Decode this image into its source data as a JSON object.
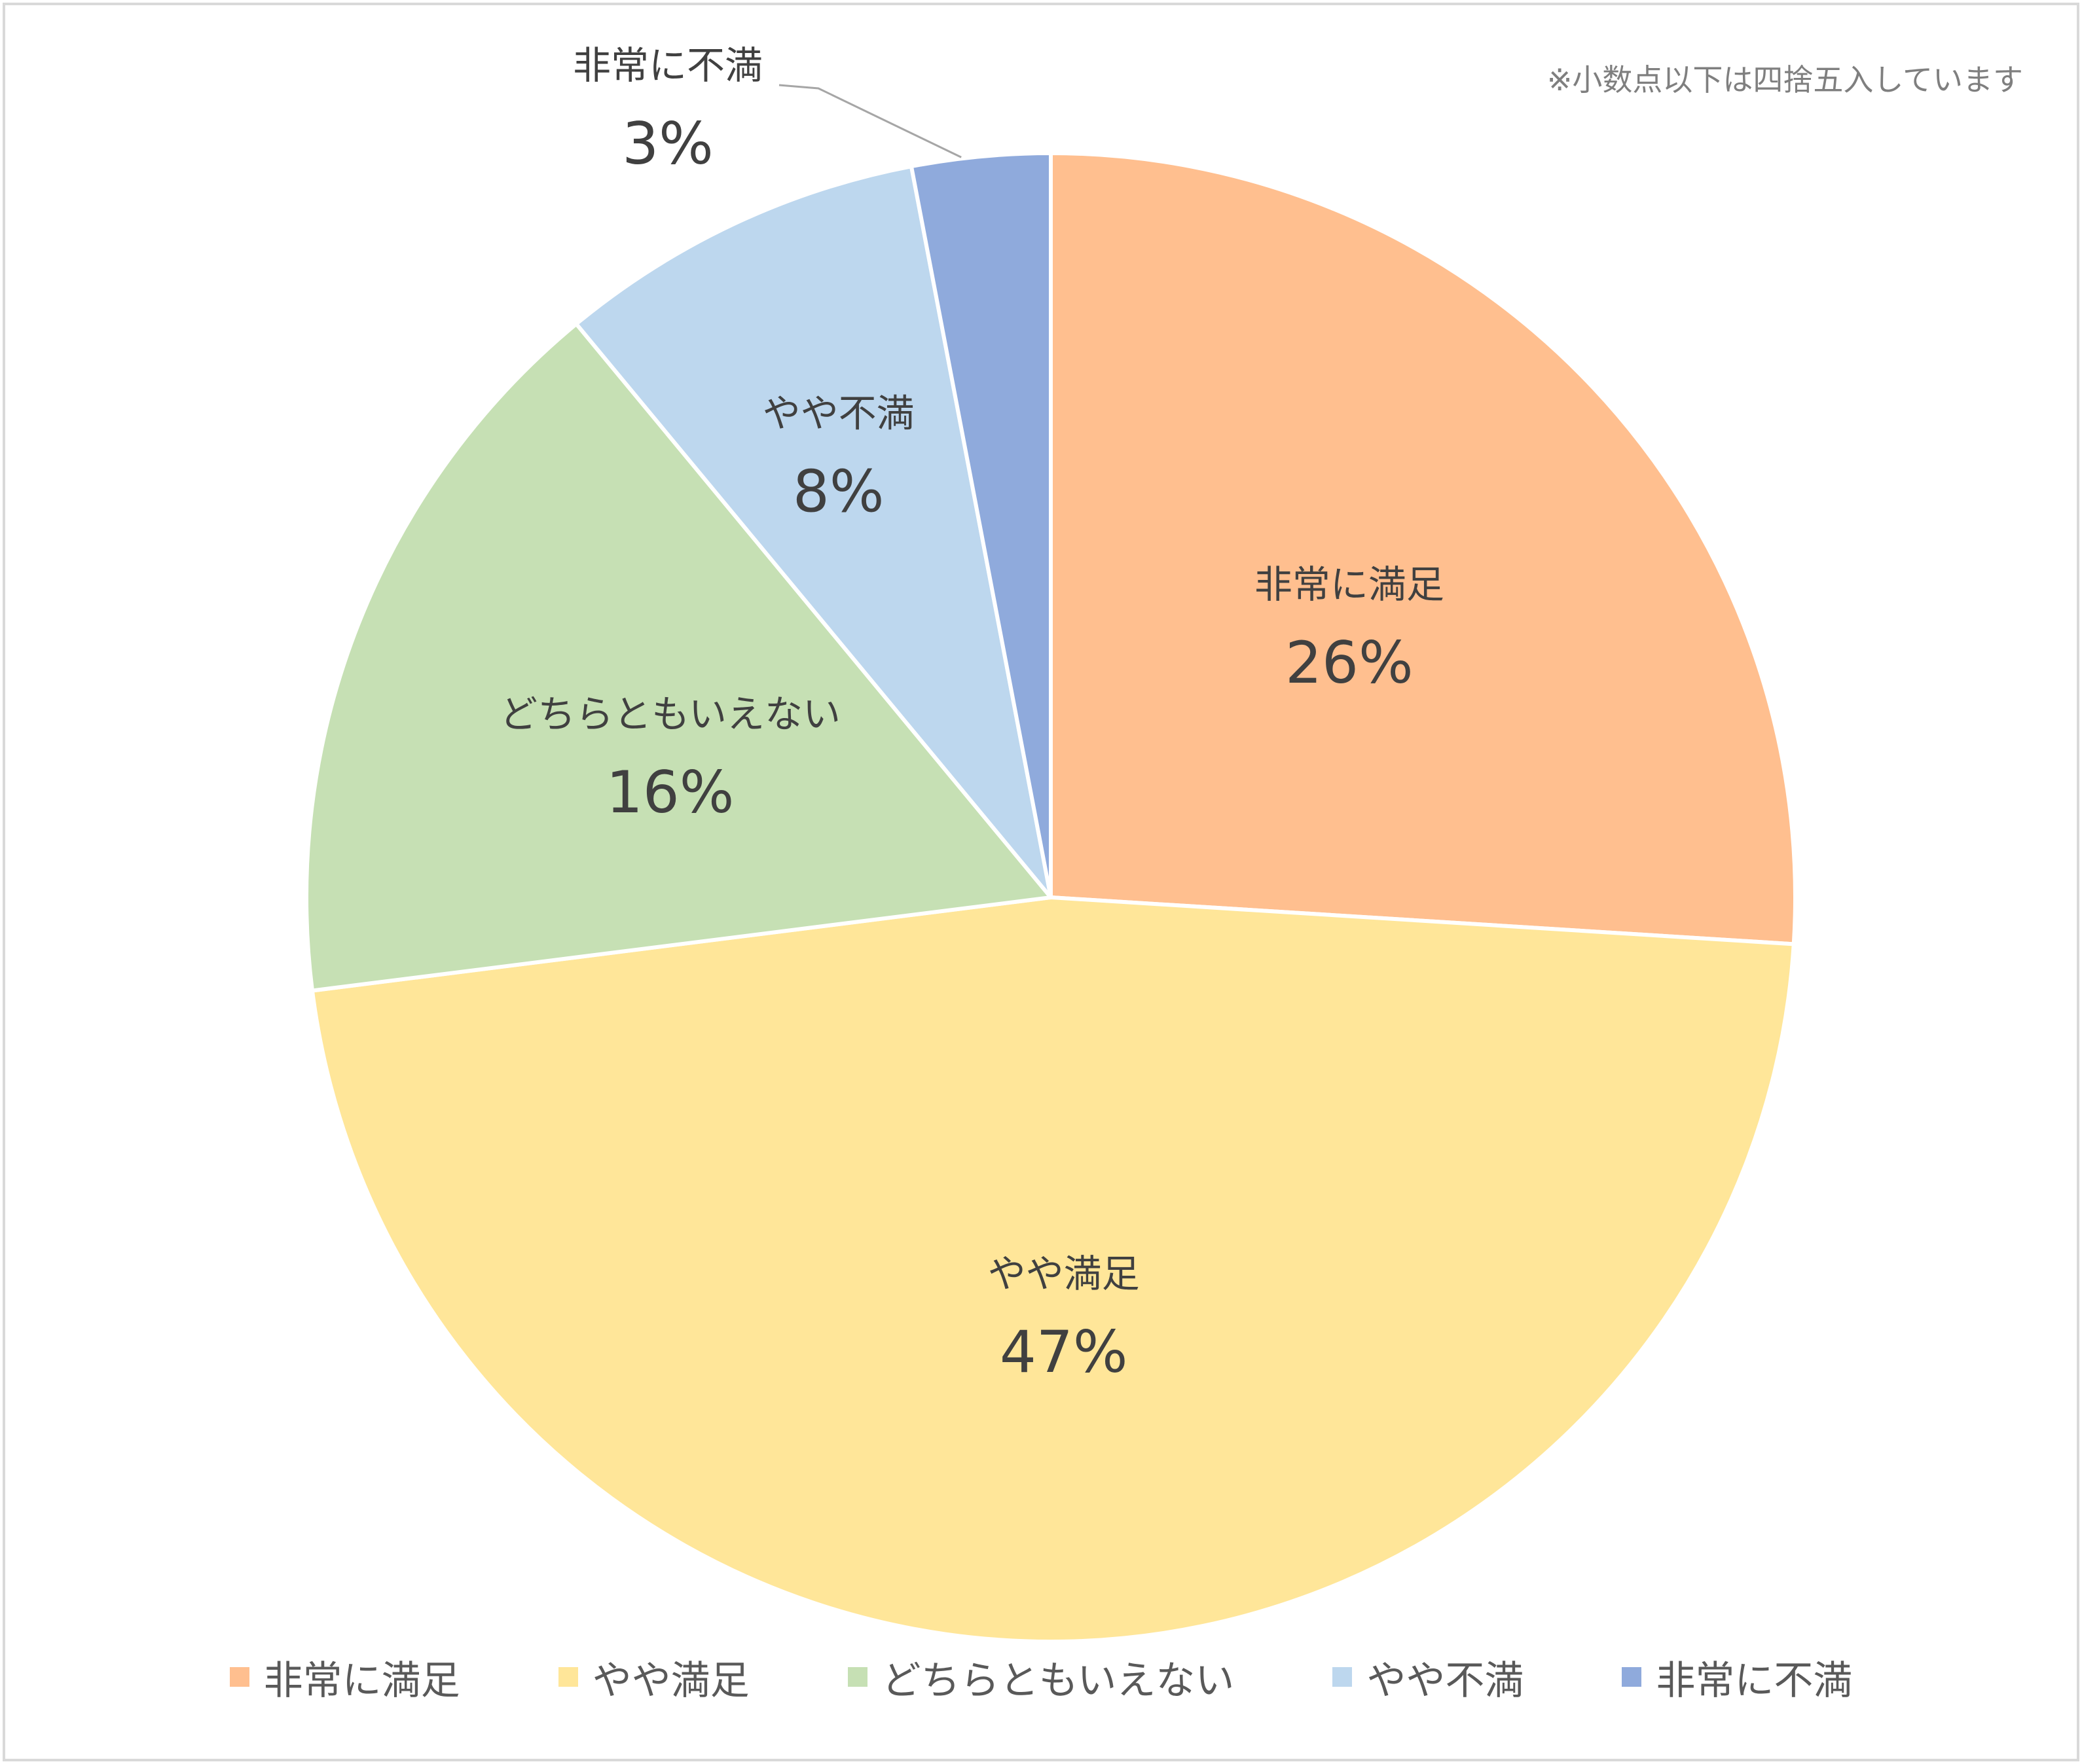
{
  "note": "※小数点以下は四捨五入しています",
  "chart_data": {
    "type": "pie",
    "start_angle_deg": 0,
    "direction": "clockwise",
    "legend_position": "bottom",
    "slices": [
      {
        "label": "非常に満足",
        "value": 26,
        "display": "26%",
        "color": "#FFBF8F",
        "label_position": "inside"
      },
      {
        "label": "やや満足",
        "value": 47,
        "display": "47%",
        "color": "#FFE699",
        "label_position": "inside"
      },
      {
        "label": "どちらともいえない",
        "value": 16,
        "display": "16%",
        "color": "#C6E0B4",
        "label_position": "inside"
      },
      {
        "label": "やや不満",
        "value": 8,
        "display": "8%",
        "color": "#BDD7EE",
        "label_position": "inside"
      },
      {
        "label": "非常に不満",
        "value": 3,
        "display": "3%",
        "color": "#8FAADC",
        "label_position": "outside-with-leader"
      }
    ]
  }
}
